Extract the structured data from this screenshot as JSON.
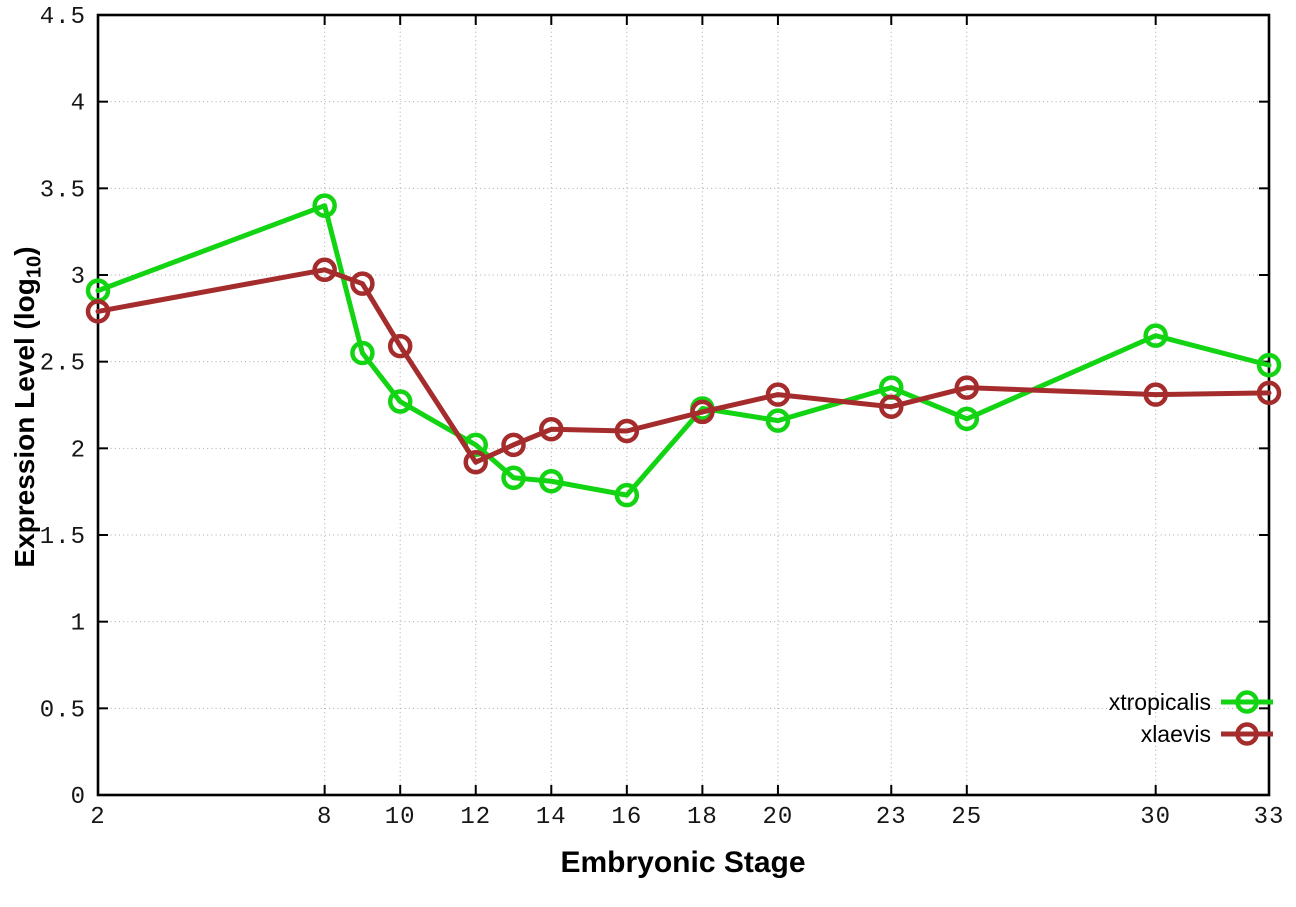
{
  "figure": {
    "background": "#ffffff",
    "xlabel": "Embryonic Stage",
    "ylabel_prefix": "Expression Level (log",
    "ylabel_sub": "10",
    "ylabel_suffix": ")"
  },
  "chart_data": {
    "type": "line",
    "title": "",
    "xlabel": "Embryonic Stage",
    "ylabel": "Expression Level (log10)",
    "xlim": [
      2,
      33
    ],
    "ylim": [
      0,
      4.5
    ],
    "x_ticks": [
      2,
      8,
      10,
      12,
      14,
      16,
      18,
      20,
      23,
      25,
      30,
      33
    ],
    "y_ticks": [
      0,
      0.5,
      1,
      1.5,
      2,
      2.5,
      3,
      3.5,
      4,
      4.5
    ],
    "grid": true,
    "legend_position": "bottom-right",
    "x": [
      2,
      8,
      9,
      10,
      12,
      13,
      14,
      16,
      18,
      20,
      23,
      25,
      30,
      33
    ],
    "series": [
      {
        "name": "xtropicalis",
        "color": "#12d412",
        "values": [
          2.91,
          3.4,
          2.55,
          2.27,
          2.02,
          1.83,
          1.81,
          1.73,
          2.23,
          2.16,
          2.35,
          2.17,
          2.65,
          2.48
        ]
      },
      {
        "name": "xlaevis",
        "color": "#a52c2c",
        "values": [
          2.79,
          3.03,
          2.95,
          2.59,
          1.92,
          2.02,
          2.11,
          2.1,
          2.21,
          2.31,
          2.24,
          2.35,
          2.31,
          2.32
        ]
      }
    ]
  }
}
